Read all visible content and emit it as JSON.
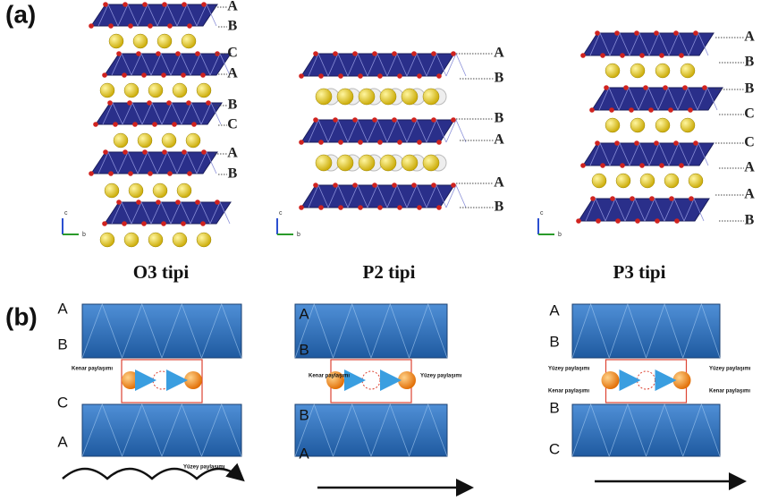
{
  "panel_a": {
    "label": "(a)",
    "axis_labels": [
      "c",
      "b"
    ],
    "columns": [
      {
        "title": "O3 tipi",
        "stacking": [
          "A",
          "B",
          "C",
          "A",
          "B",
          "C",
          "A",
          "B"
        ]
      },
      {
        "title": "P2 tipi",
        "stacking": [
          "A",
          "B",
          "B",
          "A",
          "A",
          "B"
        ]
      },
      {
        "title": "P3 tipi",
        "stacking": [
          "A",
          "B",
          "B",
          "C",
          "C",
          "A",
          "A",
          "B"
        ]
      }
    ]
  },
  "panel_b": {
    "label": "(b)",
    "columns": [
      {
        "layers": [
          "A",
          "B",
          "C",
          "A"
        ],
        "notes": [
          "Kenar paylaşımı",
          "Yüzey paylaşımı"
        ]
      },
      {
        "layers": [
          "A",
          "B",
          "B",
          "A"
        ],
        "notes": [
          "Kenar paylaşımı",
          "Yüzey paylaşımı"
        ]
      },
      {
        "layers": [
          "A",
          "B",
          "B",
          "C"
        ],
        "notes": [
          "Yüzey paylaşımı",
          "Kenar paylaşımı",
          "Yüzey paylaşımı",
          "Kenar paylaşımı"
        ]
      }
    ]
  }
}
